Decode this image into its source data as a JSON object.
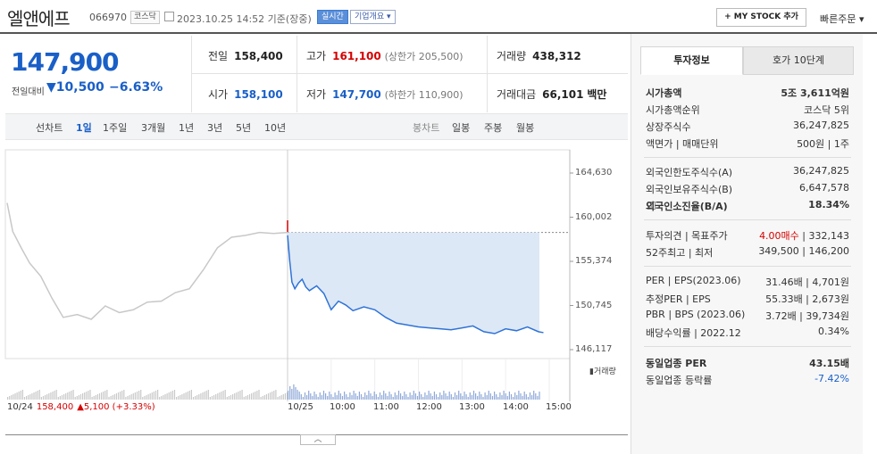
{
  "header": {
    "stock_name": "엘앤에프",
    "stock_code": "066970",
    "market_tag": "코스닥",
    "timestamp": "2023.10.25 14:52 기준(장중)",
    "realtime_label": "실시간",
    "company_info_label": "기업개요",
    "my_stock_label": "+ MY STOCK 추가",
    "quick_order_label": "빠른주문"
  },
  "quote": {
    "price": "147,900",
    "change_label": "전일대비",
    "change_value": "▼10,500",
    "change_pct": "−6.63%",
    "prev_close_label": "전일",
    "prev_close": "158,400",
    "high_label": "고가",
    "high": "161,100",
    "upper_limit": "(상한가 205,500)",
    "volume_label": "거래량",
    "volume": "438,312",
    "open_label": "시가",
    "open": "158,100",
    "low_label": "저가",
    "low": "147,700",
    "lower_limit": "(하한가 110,900)",
    "amount_label": "거래대금",
    "amount": "66,101",
    "amount_unit": "백만"
  },
  "chart_tabs": {
    "line_label": "선차트",
    "periods": [
      "1일",
      "1주일",
      "3개월",
      "1년",
      "3년",
      "5년",
      "10년"
    ],
    "candle_label": "봉차트",
    "candles": [
      "일봉",
      "주봉",
      "월봉"
    ]
  },
  "chart_data": {
    "type": "line",
    "y_ticks": [
      "164,630",
      "160,002",
      "155,374",
      "150,745",
      "146,117"
    ],
    "x_ticks": [
      "10/25",
      "10:00",
      "11:00",
      "12:00",
      "13:00",
      "14:00",
      "15:00"
    ],
    "ylim": [
      146117,
      164630
    ],
    "prev_close": 158400,
    "series": [
      {
        "name": "10/24",
        "x": [
          0,
          0.02,
          0.05,
          0.08,
          0.12,
          0.16,
          0.2,
          0.25,
          0.3,
          0.35,
          0.4,
          0.45,
          0.5,
          0.55,
          0.6,
          0.65,
          0.7,
          0.75,
          0.8,
          0.85,
          0.9,
          0.95,
          1.0
        ],
        "y": [
          161500,
          158500,
          156800,
          155200,
          153800,
          151500,
          149500,
          149800,
          149300,
          150700,
          150000,
          150300,
          151100,
          151200,
          152100,
          152500,
          154500,
          156800,
          157900,
          158100,
          158400,
          158300,
          158400
        ]
      },
      {
        "name": "10/25",
        "x": [
          "09:00",
          "09:03",
          "09:06",
          "09:10",
          "09:15",
          "09:20",
          "09:25",
          "09:30",
          "09:40",
          "09:50",
          "10:00",
          "10:10",
          "10:20",
          "10:30",
          "10:45",
          "11:00",
          "11:15",
          "11:30",
          "11:45",
          "12:00",
          "12:15",
          "12:30",
          "12:45",
          "13:00",
          "13:15",
          "13:30",
          "13:45",
          "14:00",
          "14:15",
          "14:30",
          "14:45",
          "14:52"
        ],
        "y": [
          158100,
          155400,
          153200,
          152500,
          153100,
          153500,
          152700,
          152300,
          152800,
          152000,
          150300,
          151200,
          150800,
          150200,
          150600,
          150300,
          149500,
          148900,
          148700,
          148500,
          148400,
          148300,
          148200,
          148400,
          148600,
          148000,
          147800,
          148300,
          148100,
          148500,
          148000,
          147900
        ]
      }
    ],
    "volume_label": "거래량",
    "prev_day_info": {
      "date": "10/24",
      "price": "158,400",
      "change": "▲5,100 (+3.33%)"
    }
  },
  "right_panel": {
    "tabs": [
      "투자정보",
      "호가 10단계"
    ],
    "rows": [
      {
        "label": "시가총액",
        "value": "5조 3,611억원",
        "bold": true
      },
      {
        "label": "시가총액순위",
        "value": "코스닥 5위"
      },
      {
        "label": "상장주식수",
        "value": "36,247,825"
      },
      {
        "label": "액면가 | 매매단위",
        "value": "500원 | 1주"
      },
      {
        "label": "외국인한도주식수(A)",
        "value": "36,247,825"
      },
      {
        "label": "외국인보유주식수(B)",
        "value": "6,647,578"
      },
      {
        "label": "외국인소진율(B/A)",
        "value": "18.34%",
        "bold": true
      },
      {
        "label": "투자의견 | 목표주가",
        "value_red": "4.00매수",
        "value": "332,143"
      },
      {
        "label": "52주최고 | 최저",
        "value": "349,500 | 146,200"
      },
      {
        "label": "PER | EPS(2023.06)",
        "value": "31.46배 | 4,701원"
      },
      {
        "label": "추정PER | EPS",
        "value": "55.33배 | 2,673원"
      },
      {
        "label": "PBR | BPS (2023.06)",
        "value": "3.72배 | 39,734원"
      },
      {
        "label": "배당수익률 | 2022.12",
        "value": "0.34%"
      },
      {
        "label": "동일업종 PER",
        "value": "43.15배",
        "bold": true
      },
      {
        "label": "동일업종 등락률",
        "value": "-7.42%",
        "blue": true
      }
    ]
  },
  "collapse_label": "︿"
}
